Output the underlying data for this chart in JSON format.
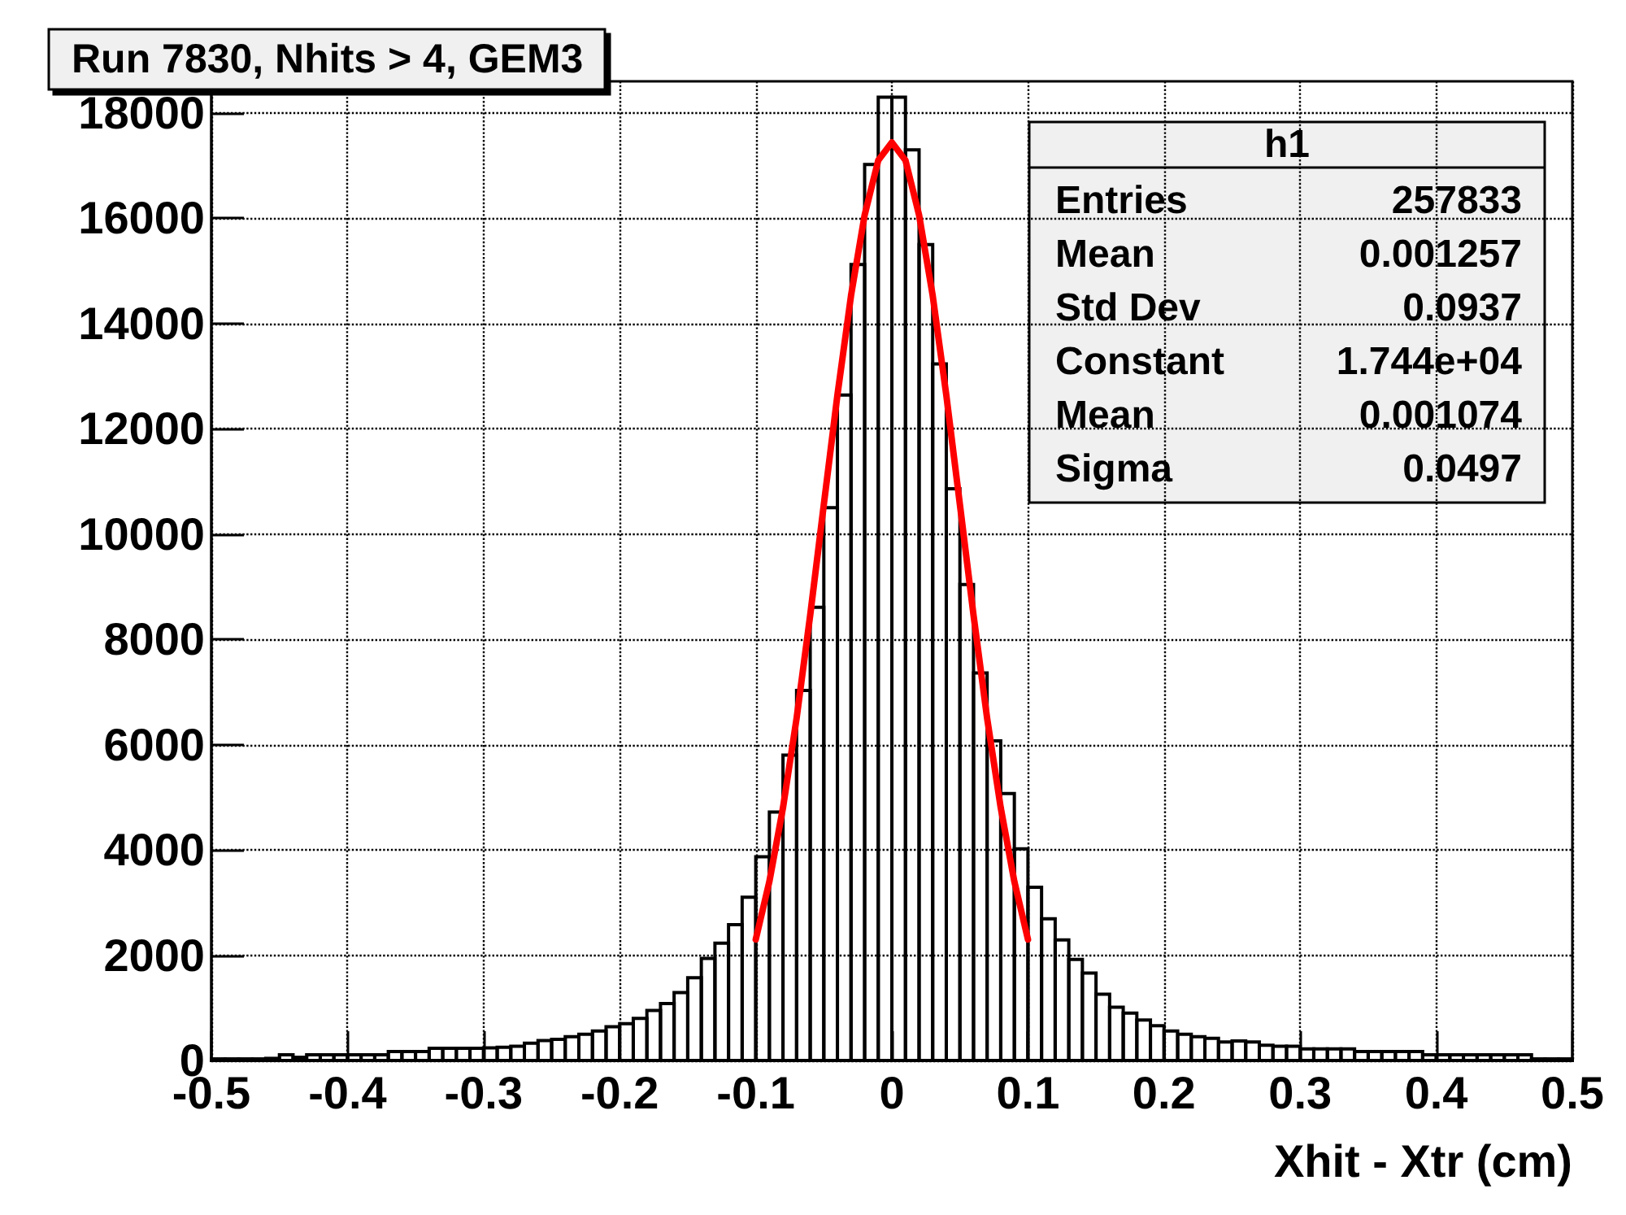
{
  "chart_data": {
    "type": "histogram",
    "title": "Run 7830, Nhits > 4, GEM3",
    "xlabel": "Xhit - Xtr (cm)",
    "color": "#000000",
    "bins": [
      -0.5,
      -0.49,
      -0.48,
      -0.47,
      -0.46,
      -0.45,
      -0.44,
      -0.43,
      -0.42,
      -0.41,
      -0.4,
      -0.39,
      -0.38,
      -0.37,
      -0.36,
      -0.35,
      -0.34,
      -0.33,
      -0.32,
      -0.31,
      -0.3,
      -0.29,
      -0.28,
      -0.27,
      -0.26,
      -0.25,
      -0.24,
      -0.23,
      -0.22,
      -0.21,
      -0.2,
      -0.19,
      -0.18,
      -0.17,
      -0.16,
      -0.15,
      -0.14,
      -0.13,
      -0.12,
      -0.11,
      -0.1,
      -0.09,
      -0.08,
      -0.07,
      -0.06,
      -0.05,
      -0.04,
      -0.03,
      -0.02,
      -0.01,
      0,
      0.01,
      0.02,
      0.03,
      0.04,
      0.05,
      0.06,
      0.07,
      0.08,
      0.09,
      0.1,
      0.11,
      0.12,
      0.13,
      0.14,
      0.15,
      0.16,
      0.17,
      0.18,
      0.19,
      0.2,
      0.21,
      0.22,
      0.23,
      0.24,
      0.25,
      0.26,
      0.27,
      0.28,
      0.29,
      0.3,
      0.31,
      0.32,
      0.33,
      0.34,
      0.35,
      0.36,
      0.37,
      0.38,
      0.39,
      0.4,
      0.41,
      0.42,
      0.43,
      0.44,
      0.45,
      0.46,
      0.47,
      0.48,
      0.49,
      0.5
    ],
    "values": [
      30,
      30,
      30,
      30,
      40,
      110,
      60,
      110,
      110,
      110,
      110,
      110,
      110,
      170,
      170,
      170,
      230,
      230,
      230,
      230,
      240,
      250,
      270,
      330,
      380,
      400,
      450,
      500,
      560,
      640,
      700,
      800,
      950,
      1080,
      1290,
      1570,
      1940,
      2230,
      2580,
      3100,
      3870,
      4720,
      5800,
      7030,
      8610,
      10500,
      12640,
      15120,
      17020,
      18300,
      18300,
      17300,
      15500,
      13230,
      10860,
      9040,
      7360,
      6070,
      5070,
      4020,
      3290,
      2690,
      2290,
      1920,
      1660,
      1260,
      1010,
      900,
      770,
      660,
      560,
      500,
      450,
      420,
      350,
      370,
      350,
      290,
      270,
      270,
      220,
      220,
      220,
      220,
      170,
      170,
      170,
      170,
      170,
      110,
      110,
      110,
      110,
      110,
      110,
      110,
      110,
      30,
      30,
      30
    ],
    "series": [
      {
        "type": "line",
        "color": "#ff0000",
        "x": [
          -0.1,
          -0.09,
          -0.08,
          -0.07,
          -0.06,
          -0.05,
          -0.04,
          -0.03,
          -0.02,
          -0.01,
          0,
          0.01,
          0.02,
          0.03,
          0.04,
          0.05,
          0.06,
          0.07,
          0.08,
          0.09,
          0.1
        ],
        "values": [
          2300,
          3400,
          4800,
          6500,
          8460,
          10560,
          12640,
          14530,
          16060,
          17100,
          17440,
          17100,
          16060,
          14530,
          12640,
          10560,
          8460,
          6500,
          4800,
          3400,
          2300
        ]
      }
    ],
    "xlim": [
      -0.5,
      0.5
    ],
    "xticks": [
      -0.5,
      -0.4,
      -0.3,
      -0.2,
      -0.1,
      0,
      0.1,
      0.2,
      0.3,
      0.4,
      0.5
    ],
    "ylim": [
      0,
      18600
    ],
    "yticks": [
      0,
      2000,
      4000,
      6000,
      8000,
      10000,
      12000,
      14000,
      16000,
      18000
    ],
    "grid": true,
    "marker": "none",
    "line_style": "solid",
    "annotations": [
      "h1",
      "Entries",
      "257833",
      "Mean",
      "0.001257",
      "Std Dev",
      "0.0937",
      "Constant",
      "1.744e+04",
      "Mean",
      "0.001074",
      "Sigma",
      "0.0497"
    ]
  }
}
